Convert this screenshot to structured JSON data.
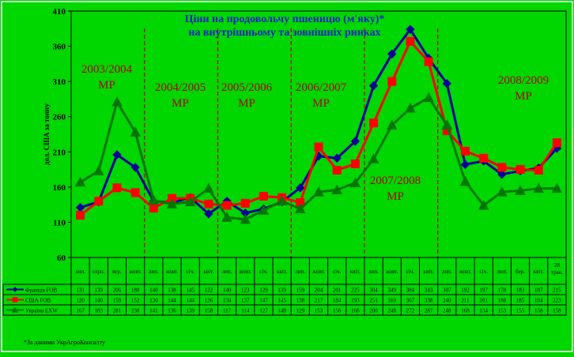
{
  "chart_data": {
    "type": "line",
    "title": [
      "Ціни на продовольчу пшеницю (м'яку)*",
      "на внутрішньому та зовнішніх ринках"
    ],
    "ylabel": "дол. США за тонну",
    "ylim": [
      60,
      410
    ],
    "yticks": [
      60,
      110,
      160,
      210,
      260,
      310,
      360,
      410
    ],
    "grid": false,
    "legend_placement": "data-table-left",
    "footnote": "*За даними УкрАгроКонсалту",
    "categories": [
      "лип.",
      "серп.",
      "вер.",
      "жовт.",
      "лип.",
      "жовт.",
      "січ.",
      "квіт.",
      "лип.",
      "жовт.",
      "січ.",
      "квіт.",
      "лип.",
      "жовт.",
      "січ.",
      "квіт.",
      "лип.",
      "жовт.",
      "січ.",
      "квіт.",
      "лип.",
      "жовт.",
      "січ.",
      "лют.",
      "бер.",
      "квіт.",
      "28 трав."
    ],
    "series": [
      {
        "name": "Франція FOB",
        "color": "#000099",
        "marker": "diamond",
        "values": [
          131,
          139,
          206,
          188,
          140,
          138,
          145,
          122,
          140,
          123,
          129,
          139,
          159,
          204,
          201,
          225,
          304,
          349,
          384,
          343,
          307,
          192,
          197,
          178,
          183,
          187,
          215
        ]
      },
      {
        "name": "США FOB",
        "color": "#ff0000",
        "marker": "square",
        "values": [
          120,
          140,
          159,
          152,
          130,
          144,
          144,
          136,
          134,
          137,
          147,
          145,
          138,
          217,
          184,
          193,
          251,
          310,
          367,
          338,
          240,
          211,
          201,
          188,
          185,
          184,
          223
        ]
      },
      {
        "name": "Україна EXW",
        "color": "#007700",
        "marker": "triangle",
        "values": [
          167,
          183,
          281,
          238,
          141,
          136,
          139,
          158,
          117,
          114,
          127,
          140,
          129,
          153,
          156,
          166,
          200,
          248,
          272,
          287,
          248,
          168,
          134,
          153,
          155,
          158,
          158
        ]
      }
    ],
    "season_labels": [
      {
        "text": [
          "2003/2004",
          "МР"
        ],
        "color": "#b00000"
      },
      {
        "text": [
          "2004/2005",
          "МР"
        ],
        "color": "#b00000"
      },
      {
        "text": [
          "2005/2006",
          "МР"
        ],
        "color": "#b00000"
      },
      {
        "text": [
          "2006/2007",
          "МР"
        ],
        "color": "#b00000"
      },
      {
        "text": [
          "2007/2008",
          "МР"
        ],
        "color": "#b00000"
      },
      {
        "text": [
          "2008/2009",
          "МР"
        ],
        "color": "#b00000"
      }
    ],
    "season_boundaries_after_index": [
      3,
      7,
      11,
      15,
      19
    ]
  }
}
